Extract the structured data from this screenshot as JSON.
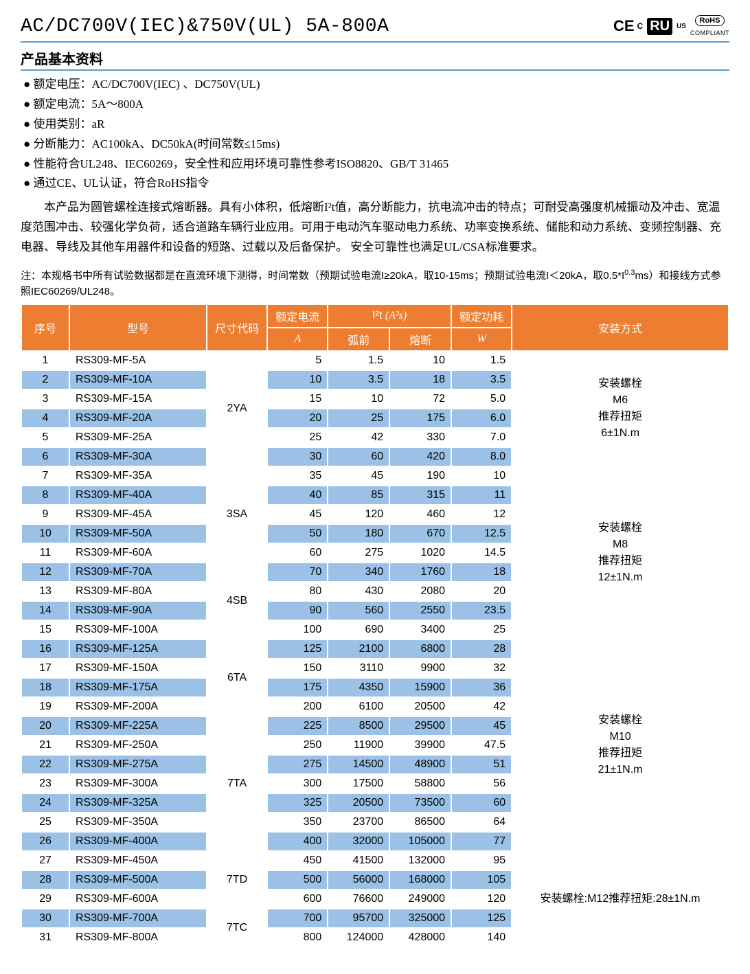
{
  "header": {
    "title": "AC/DC700V(IEC)&750V(UL) 5A-800A",
    "ce_text": "CE",
    "ce_sub": "C",
    "ul_text": "RU",
    "ul_sub": "US",
    "rohs_text": "RoHS",
    "rohs_sub": "COMPLIANT"
  },
  "section_title": "产品基本资料",
  "specs": [
    "额定电压：AC/DC700V(IEC) 、DC750V(UL)",
    "额定电流：5A～800A",
    "使用类别：aR",
    "分断能力：AC100kA、DC50kA(时间常数≤15ms)",
    "性能符合UL248、IEC60269，安全性和应用环境可靠性参考ISO8820、GB/T 31465",
    "通过CE、UL认证，符合RoHS指令"
  ],
  "description": "本产品为圆管螺栓连接式熔断器。具有小体积，低熔断I²t值，高分断能力，抗电流冲击的特点；可耐受高强度机械振动及冲击、宽温度范围冲击、较强化学负荷，适合道路车辆行业应用。可用于电动汽车驱动电力系统、功率变换系统、储能和动力系统、变频控制器、充电器、导线及其他车用器件和设备的短路、过载以及后备保护。 安全可靠性也满足UL/CSA标准要求。",
  "note_prefix": "注：本规格书中所有试验数据都是在直流环境下测得，时间常数（预期试验电流I≥20kA，取10-15ms；预期试验电流I＜20kA，取0.5*I",
  "note_sup": "0.3",
  "note_suffix": "ms）和接线方式参照IEC60269/UL248。",
  "table": {
    "headers": {
      "seq": "序号",
      "model": "型号",
      "size": "尺寸代码",
      "current": "额定电流",
      "current_unit": "A",
      "i2t": "I²t",
      "i2t_unit": "(A²s)",
      "pre_arc": "弧前",
      "clearing": "熔断",
      "power": "额定功耗",
      "power_unit": "W",
      "install": "安装方式"
    },
    "colors": {
      "header_bg": "#ed7d31",
      "header_fg": "#ffffff",
      "row_even_bg": "#9bc2e6",
      "row_odd_bg": "#ffffff",
      "border": "#ffffff"
    },
    "size_groups": [
      {
        "code": "2YA",
        "span": 6
      },
      {
        "code": "3SA",
        "span": 5
      },
      {
        "code": "4SB",
        "span": 4
      },
      {
        "code": "6TA",
        "span": 4
      },
      {
        "code": "7TA",
        "span": 7
      },
      {
        "code": "7TD",
        "span": 3
      },
      {
        "code": "7TC",
        "span": 2
      }
    ],
    "install_groups": [
      {
        "lines": [
          "安装螺栓",
          "M6",
          "推荐扭矩",
          "6±1N.m"
        ],
        "span": 6
      },
      {
        "lines": [
          "安装螺栓",
          "M8",
          "推荐扭矩",
          "12±1N.m"
        ],
        "span": 9
      },
      {
        "lines": [
          "安装螺栓",
          "M10",
          "推荐扭矩",
          "21±1N.m"
        ],
        "span": 11
      },
      {
        "lines": [
          "安装螺栓:M12推荐扭矩:28±1N.m"
        ],
        "span": 5
      }
    ],
    "rows": [
      {
        "seq": 1,
        "model": "RS309-MF-5A",
        "current": 5,
        "pre": "1.5",
        "clr": "10",
        "pw": "1.5"
      },
      {
        "seq": 2,
        "model": "RS309-MF-10A",
        "current": 10,
        "pre": "3.5",
        "clr": "18",
        "pw": "3.5"
      },
      {
        "seq": 3,
        "model": "RS309-MF-15A",
        "current": 15,
        "pre": "10",
        "clr": "72",
        "pw": "5.0"
      },
      {
        "seq": 4,
        "model": "RS309-MF-20A",
        "current": 20,
        "pre": "25",
        "clr": "175",
        "pw": "6.0"
      },
      {
        "seq": 5,
        "model": "RS309-MF-25A",
        "current": 25,
        "pre": "42",
        "clr": "330",
        "pw": "7.0"
      },
      {
        "seq": 6,
        "model": "RS309-MF-30A",
        "current": 30,
        "pre": "60",
        "clr": "420",
        "pw": "8.0"
      },
      {
        "seq": 7,
        "model": "RS309-MF-35A",
        "current": 35,
        "pre": "45",
        "clr": "190",
        "pw": "10"
      },
      {
        "seq": 8,
        "model": "RS309-MF-40A",
        "current": 40,
        "pre": "85",
        "clr": "315",
        "pw": "11"
      },
      {
        "seq": 9,
        "model": "RS309-MF-45A",
        "current": 45,
        "pre": "120",
        "clr": "460",
        "pw": "12"
      },
      {
        "seq": 10,
        "model": "RS309-MF-50A",
        "current": 50,
        "pre": "180",
        "clr": "670",
        "pw": "12.5"
      },
      {
        "seq": 11,
        "model": "RS309-MF-60A",
        "current": 60,
        "pre": "275",
        "clr": "1020",
        "pw": "14.5"
      },
      {
        "seq": 12,
        "model": "RS309-MF-70A",
        "current": 70,
        "pre": "340",
        "clr": "1760",
        "pw": "18"
      },
      {
        "seq": 13,
        "model": "RS309-MF-80A",
        "current": 80,
        "pre": "430",
        "clr": "2080",
        "pw": "20"
      },
      {
        "seq": 14,
        "model": "RS309-MF-90A",
        "current": 90,
        "pre": "560",
        "clr": "2550",
        "pw": "23.5"
      },
      {
        "seq": 15,
        "model": "RS309-MF-100A",
        "current": 100,
        "pre": "690",
        "clr": "3400",
        "pw": "25"
      },
      {
        "seq": 16,
        "model": "RS309-MF-125A",
        "current": 125,
        "pre": "2100",
        "clr": "6800",
        "pw": "28"
      },
      {
        "seq": 17,
        "model": "RS309-MF-150A",
        "current": 150,
        "pre": "3110",
        "clr": "9900",
        "pw": "32"
      },
      {
        "seq": 18,
        "model": "RS309-MF-175A",
        "current": 175,
        "pre": "4350",
        "clr": "15900",
        "pw": "36"
      },
      {
        "seq": 19,
        "model": "RS309-MF-200A",
        "current": 200,
        "pre": "6100",
        "clr": "20500",
        "pw": "42"
      },
      {
        "seq": 20,
        "model": "RS309-MF-225A",
        "current": 225,
        "pre": "8500",
        "clr": "29500",
        "pw": "45"
      },
      {
        "seq": 21,
        "model": "RS309-MF-250A",
        "current": 250,
        "pre": "11900",
        "clr": "39900",
        "pw": "47.5"
      },
      {
        "seq": 22,
        "model": "RS309-MF-275A",
        "current": 275,
        "pre": "14500",
        "clr": "48900",
        "pw": "51"
      },
      {
        "seq": 23,
        "model": "RS309-MF-300A",
        "current": 300,
        "pre": "17500",
        "clr": "58800",
        "pw": "56"
      },
      {
        "seq": 24,
        "model": "RS309-MF-325A",
        "current": 325,
        "pre": "20500",
        "clr": "73500",
        "pw": "60"
      },
      {
        "seq": 25,
        "model": "RS309-MF-350A",
        "current": 350,
        "pre": "23700",
        "clr": "86500",
        "pw": "64"
      },
      {
        "seq": 26,
        "model": "RS309-MF-400A",
        "current": 400,
        "pre": "32000",
        "clr": "105000",
        "pw": "77"
      },
      {
        "seq": 27,
        "model": "RS309-MF-450A",
        "current": 450,
        "pre": "41500",
        "clr": "132000",
        "pw": "95"
      },
      {
        "seq": 28,
        "model": "RS309-MF-500A",
        "current": 500,
        "pre": "56000",
        "clr": "168000",
        "pw": "105"
      },
      {
        "seq": 29,
        "model": "RS309-MF-600A",
        "current": 600,
        "pre": "76600",
        "clr": "249000",
        "pw": "120"
      },
      {
        "seq": 30,
        "model": "RS309-MF-700A",
        "current": 700,
        "pre": "95700",
        "clr": "325000",
        "pw": "125"
      },
      {
        "seq": 31,
        "model": "RS309-MF-800A",
        "current": 800,
        "pre": "124000",
        "clr": "428000",
        "pw": "140"
      }
    ]
  }
}
